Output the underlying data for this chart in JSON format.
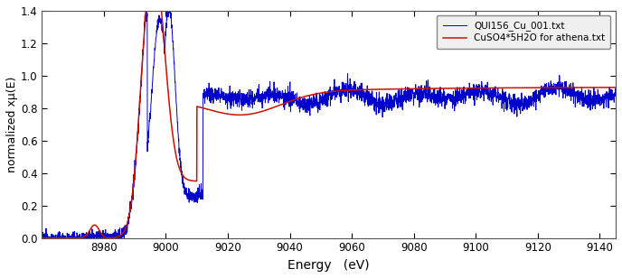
{
  "title": "",
  "xlabel": "Energy   (eV)",
  "ylabel": "normalized xμ(E)",
  "xlim": [
    8960,
    9145
  ],
  "ylim": [
    0,
    1.4
  ],
  "xticks": [
    8980,
    9000,
    9020,
    9040,
    9060,
    9080,
    9100,
    9120,
    9140
  ],
  "yticks": [
    0.0,
    0.2,
    0.4,
    0.6,
    0.8,
    1.0,
    1.2,
    1.4
  ],
  "legend": [
    "QUI156_Cu_001.txt",
    "CuSO4*5H2O for athena.txt"
  ],
  "blue_color": "#0000cc",
  "red_color": "#cc1100",
  "background_color": "#ffffff"
}
